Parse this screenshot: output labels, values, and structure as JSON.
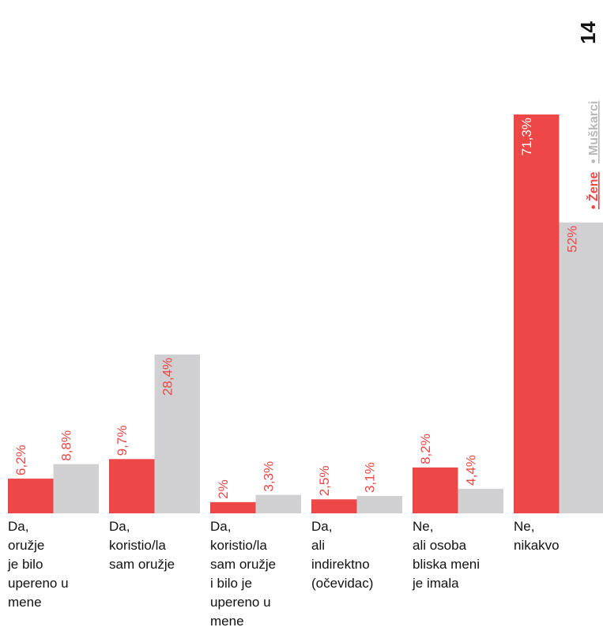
{
  "page_number": "14",
  "legend": {
    "women": "• Žene",
    "men": "• Muškarci"
  },
  "colors": {
    "women": "#ed4747",
    "men": "#d0d0d2",
    "men_text": "#b8b8bb",
    "text": "#111111"
  },
  "chart_data": {
    "type": "bar",
    "categories": [
      [
        "Da,",
        "oružje",
        "je bilo",
        "upereno u",
        "mene"
      ],
      [
        "Da,",
        "koristio/la",
        "sam oružje"
      ],
      [
        "Da,",
        "koristio/la",
        "sam oružje",
        "i bilo je",
        "upereno u",
        "mene"
      ],
      [
        "Da,",
        "ali",
        "indirektno",
        "(očevidac)"
      ],
      [
        "Ne,",
        "ali osoba",
        "bliska meni",
        "je imala"
      ],
      [
        "Ne,",
        "nikakvo"
      ]
    ],
    "series": [
      {
        "name": "Žene",
        "values": [
          6.2,
          9.7,
          2,
          2.5,
          8.2,
          71.3
        ],
        "labels": [
          "6,2%",
          "9,7%",
          "2%",
          "2,5%",
          "8,2%",
          "71,3%"
        ]
      },
      {
        "name": "Muškarci",
        "values": [
          8.8,
          28.4,
          3.3,
          3.1,
          4.4,
          52
        ],
        "labels": [
          "8,8%",
          "28,4%",
          "3,3%",
          "3,1%",
          "4,4%",
          "52%"
        ]
      }
    ],
    "ylim": [
      0,
      71.3
    ],
    "grid": false,
    "legend_position": "right, rotated vertical"
  }
}
